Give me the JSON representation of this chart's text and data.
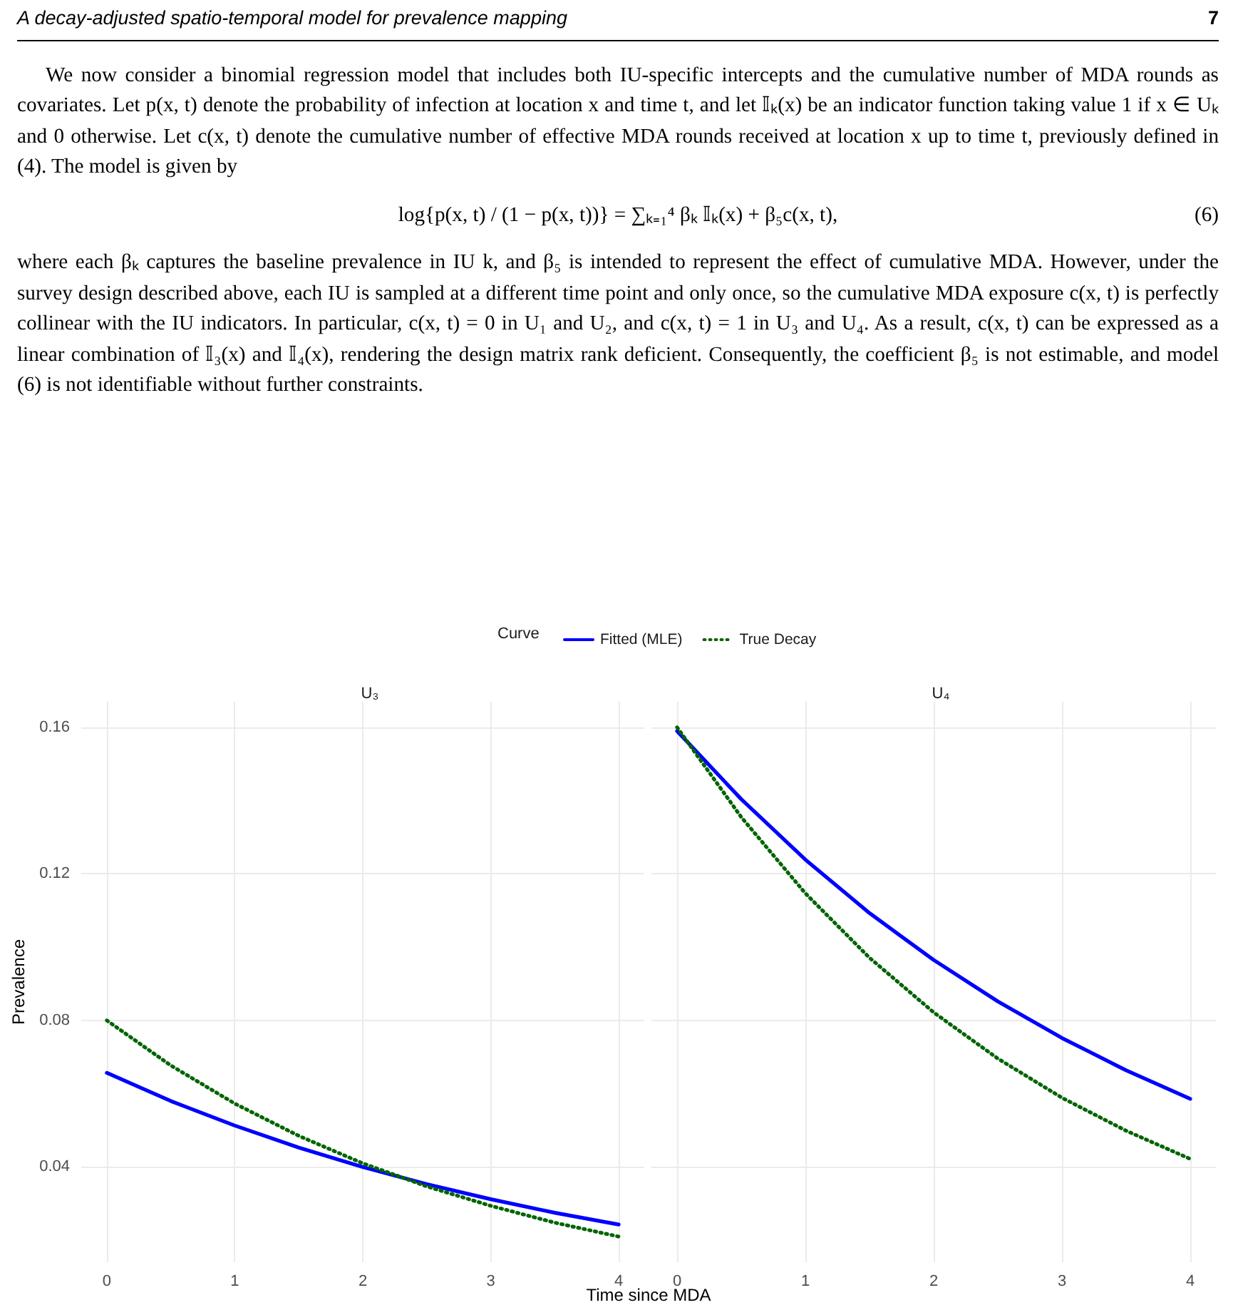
{
  "chart_data": [
    {
      "type": "line",
      "title": "U₃",
      "xlabel": "Time since MDA",
      "ylabel": "Prevalence",
      "legend_title": "Curve",
      "legend": "top",
      "annotations": [
        "A decay-adjusted spatio-temporal model for prevalence mapping",
        "7",
        "We now consider a binomial regression model that includes both IU-specific intercepts and the cumulative number of MDA rounds as covariates. Let p(x, t) denote the probability of infection at location x and time t, and let 𝕀ₖ(x) be an indicator function taking value 1 if x ∈ Uₖ and 0 otherwise. Let c(x, t) denote the cumulative number of effective MDA rounds received at location x up to time t, previously defined in (4). The model is given by",
        "log{p(x, t) / (1 − p(x, t))} = ∑ₖ₌₁⁴ βₖ 𝕀ₖ(x) + β₅c(x, t),",
        "(6)",
        "where each βₖ captures the baseline prevalence in IU k, and β₅ is intended to represent the effect of cumulative MDA. However, under the survey design described above, each IU is sampled at a different time point and only once, so the cumulative MDA exposure c(x, t) is perfectly collinear with the IU indicators. In particular, c(x, t) = 0 in U₁ and U₂, and c(x, t) = 1 in U₃ and U₄. As a result, c(x, t) can be expressed as a linear combination of 𝕀₃(x) and 𝕀₄(x), rendering the design matrix rank deficient. Consequently, the coefficient β₅ is not estimable, and model (6) is not identifiable without further constraints."
      ],
      "x": [
        0,
        0.5,
        1,
        1.5,
        2,
        2.5,
        3,
        3.5,
        4
      ],
      "series": [
        {
          "name": "Fitted (MLE)",
          "color": "#0000ff",
          "line_style": "solid",
          "values": [
            0.0657,
            0.058,
            0.0513,
            0.0453,
            0.04,
            0.0353,
            0.0312,
            0.0275,
            0.0243
          ]
        },
        {
          "name": "True Decay",
          "color": "#006400",
          "line_style": "dotted",
          "values": [
            0.08,
            0.0677,
            0.0573,
            0.0485,
            0.041,
            0.0347,
            0.0294,
            0.0248,
            0.021
          ]
        }
      ],
      "xlim": [
        -0.2,
        4.2
      ],
      "xticks": [
        0,
        1,
        2,
        3,
        4
      ],
      "ylim": [
        0.014,
        0.167
      ],
      "yticks": [
        0.04,
        0.08,
        0.12,
        0.16
      ],
      "grid": true,
      "marker": "none"
    },
    {
      "type": "line",
      "title": "U₄",
      "tick_labels": "x",
      "x": [
        0,
        0.5,
        1,
        1.5,
        2,
        2.5,
        3,
        3.5,
        4
      ],
      "series": [
        {
          "color": "#0000ff",
          "line_style": "solid",
          "values": [
            0.159,
            0.1404,
            0.1239,
            0.1093,
            0.0965,
            0.0852,
            0.0752,
            0.0664,
            0.0586
          ]
        },
        {
          "color": "#006400",
          "line_style": "dotted",
          "values": [
            0.16,
            0.1355,
            0.1147,
            0.0971,
            0.0822,
            0.0696,
            0.0589,
            0.0499,
            0.0422
          ]
        }
      ],
      "xlim": [
        -0.2,
        4.2
      ],
      "xticks": [
        0,
        1,
        2,
        3,
        4
      ],
      "ylim": [
        0.014,
        0.167
      ],
      "yticks": [
        0.04,
        0.08,
        0.12,
        0.16
      ],
      "grid": true,
      "marker": "none"
    }
  ]
}
